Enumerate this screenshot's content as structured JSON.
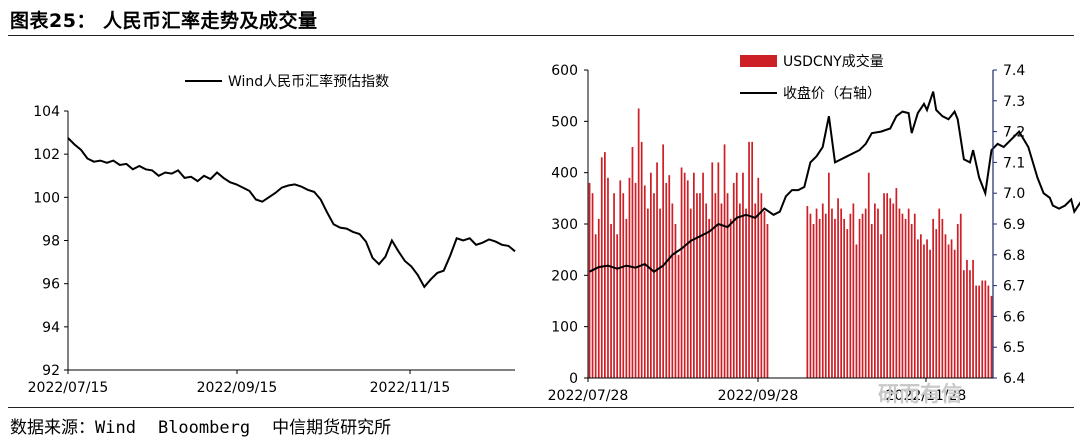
{
  "figure_title": "图表25： 人民币汇率走势及成交量",
  "source": {
    "label": "数据来源：Wind",
    "items": [
      "Bloomberg",
      "中信期货研究所"
    ]
  },
  "watermark": "研而有信",
  "chart_data": [
    {
      "type": "line",
      "series": [
        {
          "name": "Wind人民币汇率预估指数",
          "color": "#000000"
        }
      ],
      "x_tick_labels": [
        "2022/07/15",
        "2022/09/15",
        "2022/11/15"
      ],
      "ylim": [
        92,
        104
      ],
      "y_ticks": [
        92,
        94,
        96,
        98,
        100,
        102,
        104
      ],
      "x": [
        "2022/07/15",
        "2022/07/18",
        "2022/07/21",
        "2022/07/25",
        "2022/07/27",
        "2022/07/29",
        "2022/08/01",
        "2022/08/03",
        "2022/08/05",
        "2022/08/08",
        "2022/08/10",
        "2022/08/12",
        "2022/08/15",
        "2022/08/17",
        "2022/08/19",
        "2022/08/22",
        "2022/08/24",
        "2022/08/26",
        "2022/08/29",
        "2022/08/31",
        "2022/09/02",
        "2022/09/05",
        "2022/09/07",
        "2022/09/09",
        "2022/09/13",
        "2022/09/15",
        "2022/09/19",
        "2022/09/21",
        "2022/09/23",
        "2022/09/26",
        "2022/09/28",
        "2022/09/30",
        "2022/10/03",
        "2022/10/05",
        "2022/10/07",
        "2022/10/10",
        "2022/10/12",
        "2022/10/14",
        "2022/10/17",
        "2022/10/19",
        "2022/10/21",
        "2022/10/24",
        "2022/10/26",
        "2022/10/28",
        "2022/10/31",
        "2022/11/02",
        "2022/11/04",
        "2022/11/07",
        "2022/11/09",
        "2022/11/11",
        "2022/11/14",
        "2022/11/16",
        "2022/11/18",
        "2022/11/21",
        "2022/11/23",
        "2022/11/25",
        "2022/11/28",
        "2022/11/30",
        "2022/12/02",
        "2022/12/05",
        "2022/12/07",
        "2022/12/09",
        "2022/12/12",
        "2022/12/14",
        "2022/12/16",
        "2022/12/19",
        "2022/12/21",
        "2022/12/23",
        "2022/12/26",
        "2022/12/28"
      ],
      "values": [
        102.75,
        102.45,
        102.2,
        101.8,
        101.65,
        101.7,
        101.6,
        101.7,
        101.5,
        101.55,
        101.3,
        101.45,
        101.3,
        101.25,
        101.0,
        101.15,
        101.1,
        101.25,
        100.9,
        100.95,
        100.75,
        101.0,
        100.85,
        101.15,
        100.9,
        100.7,
        100.6,
        100.45,
        100.3,
        99.9,
        99.8,
        100.0,
        100.2,
        100.45,
        100.55,
        100.6,
        100.5,
        100.35,
        100.25,
        99.9,
        99.3,
        98.75,
        98.6,
        98.55,
        98.4,
        98.3,
        97.95,
        97.2,
        96.9,
        97.25,
        98.0,
        97.5,
        97.05,
        96.8,
        96.4,
        95.85,
        96.2,
        96.5,
        96.6,
        97.3,
        98.1,
        98.0,
        98.1,
        97.8,
        97.9,
        98.05,
        97.95,
        97.8,
        97.75,
        97.5
      ]
    },
    {
      "type": "bar+line",
      "series": [
        {
          "name": "USDCNY成交量",
          "type": "bar",
          "axis": "left",
          "color": "#cc1f26"
        },
        {
          "name": "收盘价（右轴）",
          "type": "line",
          "axis": "right",
          "color": "#000000"
        }
      ],
      "x_tick_labels": [
        "2022/07/28",
        "2022/09/28",
        "2022/11/28"
      ],
      "ylim_left": [
        0,
        600
      ],
      "y_ticks_left": [
        0,
        100,
        200,
        300,
        400,
        500,
        600
      ],
      "ylim_right": [
        6.4,
        7.4
      ],
      "y_ticks_right": [
        "6.4",
        "6.5",
        "6.6",
        "6.7",
        "6.8",
        "6.9",
        "7.0",
        "7.1",
        "7.2",
        "7.3",
        "7.4"
      ],
      "volume": [
        380,
        360,
        280,
        310,
        430,
        440,
        390,
        300,
        360,
        280,
        385,
        360,
        310,
        390,
        450,
        380,
        525,
        460,
        375,
        330,
        400,
        360,
        420,
        330,
        455,
        380,
        395,
        340,
        300,
        240,
        410,
        400,
        385,
        330,
        400,
        360,
        360,
        400,
        340,
        310,
        420,
        360,
        420,
        340,
        455,
        360,
        310,
        380,
        400,
        340,
        400,
        330,
        460,
        460,
        340,
        390,
        360,
        325,
        300,
        0,
        0,
        0,
        0,
        0,
        0,
        0,
        0,
        0,
        0,
        0,
        0,
        335,
        320,
        300,
        330,
        310,
        340,
        320,
        400,
        330,
        310,
        350,
        330,
        310,
        290,
        320,
        340,
        260,
        310,
        320,
        330,
        400,
        300,
        340,
        330,
        280,
        360,
        360,
        350,
        340,
        370,
        330,
        320,
        310,
        330,
        300,
        320,
        270,
        280,
        260,
        270,
        250,
        310,
        290,
        330,
        310,
        280,
        260,
        270,
        250,
        300,
        320,
        210,
        230,
        210,
        230,
        180,
        180,
        190,
        190,
        180,
        160
      ],
      "close": [
        {
          "x": 0,
          "y": 6.745
        },
        {
          "x": 3,
          "y": 6.76
        },
        {
          "x": 6,
          "y": 6.765
        },
        {
          "x": 9,
          "y": 6.755
        },
        {
          "x": 12,
          "y": 6.765
        },
        {
          "x": 15,
          "y": 6.758
        },
        {
          "x": 18,
          "y": 6.77
        },
        {
          "x": 21,
          "y": 6.745
        },
        {
          "x": 24,
          "y": 6.765
        },
        {
          "x": 27,
          "y": 6.8
        },
        {
          "x": 30,
          "y": 6.82
        },
        {
          "x": 33,
          "y": 6.845
        },
        {
          "x": 36,
          "y": 6.86
        },
        {
          "x": 39,
          "y": 6.875
        },
        {
          "x": 42,
          "y": 6.9
        },
        {
          "x": 45,
          "y": 6.89
        },
        {
          "x": 48,
          "y": 6.92
        },
        {
          "x": 51,
          "y": 6.93
        },
        {
          "x": 54,
          "y": 6.92
        },
        {
          "x": 57,
          "y": 6.95
        },
        {
          "x": 60,
          "y": 6.93
        },
        {
          "x": 62,
          "y": 6.94
        },
        {
          "x": 64,
          "y": 6.99
        },
        {
          "x": 66,
          "y": 7.01
        },
        {
          "x": 68,
          "y": 7.01
        },
        {
          "x": 70,
          "y": 7.02
        },
        {
          "x": 72,
          "y": 7.1
        },
        {
          "x": 74,
          "y": 7.12
        },
        {
          "x": 76,
          "y": 7.15
        },
        {
          "x": 78,
          "y": 7.25
        },
        {
          "x": 80,
          "y": 7.1
        },
        {
          "x": 84,
          "y": 7.12
        },
        {
          "x": 88,
          "y": 7.14
        },
        {
          "x": 90,
          "y": 7.16
        },
        {
          "x": 92,
          "y": 7.195
        },
        {
          "x": 95,
          "y": 7.2
        },
        {
          "x": 98,
          "y": 7.21
        },
        {
          "x": 100,
          "y": 7.25
        },
        {
          "x": 102,
          "y": 7.265
        },
        {
          "x": 104,
          "y": 7.26
        },
        {
          "x": 105,
          "y": 7.195
        },
        {
          "x": 107,
          "y": 7.26
        },
        {
          "x": 109,
          "y": 7.29
        },
        {
          "x": 110,
          "y": 7.27
        },
        {
          "x": 112,
          "y": 7.33
        },
        {
          "x": 113,
          "y": 7.27
        },
        {
          "x": 115,
          "y": 7.25
        },
        {
          "x": 117,
          "y": 7.24
        },
        {
          "x": 119,
          "y": 7.265
        },
        {
          "x": 120,
          "y": 7.24
        },
        {
          "x": 122,
          "y": 7.11
        },
        {
          "x": 124,
          "y": 7.1
        },
        {
          "x": 125,
          "y": 7.14
        },
        {
          "x": 127,
          "y": 7.05
        },
        {
          "x": 129,
          "y": 7.0
        },
        {
          "x": 131,
          "y": 7.14
        },
        {
          "x": 133,
          "y": 7.16
        },
        {
          "x": 135,
          "y": 7.15
        },
        {
          "x": 137,
          "y": 7.17
        },
        {
          "x": 139,
          "y": 7.19
        },
        {
          "x": 140,
          "y": 7.2
        },
        {
          "x": 143,
          "y": 7.15
        },
        {
          "x": 146,
          "y": 7.05
        },
        {
          "x": 148,
          "y": 7.0
        },
        {
          "x": 150,
          "y": 6.985
        },
        {
          "x": 151,
          "y": 6.96
        },
        {
          "x": 153,
          "y": 6.95
        },
        {
          "x": 155,
          "y": 6.96
        },
        {
          "x": 157,
          "y": 6.98
        },
        {
          "x": 158,
          "y": 6.94
        },
        {
          "x": 160,
          "y": 6.97
        },
        {
          "x": 163,
          "y": 6.975
        },
        {
          "x": 166,
          "y": 6.97
        },
        {
          "x": 168,
          "y": 6.985
        }
      ]
    }
  ]
}
